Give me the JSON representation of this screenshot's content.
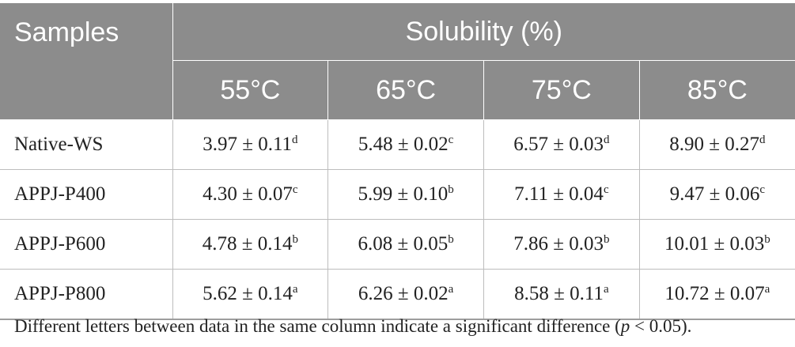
{
  "table": {
    "header_samples": "Samples",
    "header_group": "Solubility (%)",
    "temperatures": [
      "55°C",
      "65°C",
      "75°C",
      "85°C"
    ],
    "rows": [
      {
        "sample": "Native-WS",
        "cells": [
          {
            "value": "3.97 ± 0.11",
            "letter": "d"
          },
          {
            "value": "5.48 ± 0.02",
            "letter": "c"
          },
          {
            "value": "6.57 ± 0.03",
            "letter": "d"
          },
          {
            "value": "8.90 ± 0.27",
            "letter": "d"
          }
        ]
      },
      {
        "sample": "APPJ-P400",
        "cells": [
          {
            "value": "4.30 ± 0.07",
            "letter": "c"
          },
          {
            "value": "5.99 ± 0.10",
            "letter": "b"
          },
          {
            "value": "7.11 ± 0.04",
            "letter": "c"
          },
          {
            "value": "9.47 ± 0.06",
            "letter": "c"
          }
        ]
      },
      {
        "sample": "APPJ-P600",
        "cells": [
          {
            "value": "4.78 ± 0.14",
            "letter": "b"
          },
          {
            "value": "6.08 ± 0.05",
            "letter": "b"
          },
          {
            "value": "7.86 ± 0.03",
            "letter": "b"
          },
          {
            "value": "10.01 ± 0.03",
            "letter": "b"
          }
        ]
      },
      {
        "sample": "APPJ-P800",
        "cells": [
          {
            "value": "5.62 ± 0.14",
            "letter": "a"
          },
          {
            "value": "6.26 ± 0.02",
            "letter": "a"
          },
          {
            "value": "8.58 ± 0.11",
            "letter": "a"
          },
          {
            "value": "10.72 ± 0.07",
            "letter": "a"
          }
        ]
      }
    ]
  },
  "footnote": {
    "text_before": "Different letters between data in the same column indicate a significant difference (",
    "p_symbol": "p",
    "text_after": " < 0.05)."
  }
}
